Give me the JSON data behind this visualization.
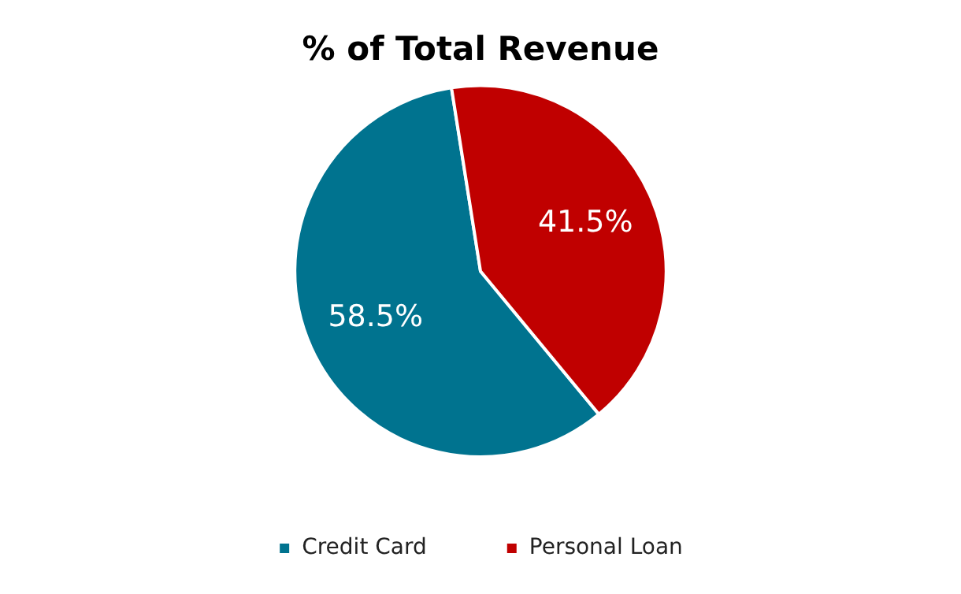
{
  "chart_data": {
    "type": "pie",
    "title": "% of Total Revenue",
    "categories": [
      "Credit Card",
      "Personal Loan"
    ],
    "values": [
      58.5,
      41.5
    ],
    "colors": [
      "#00738f",
      "#c00000"
    ],
    "value_labels": [
      "58.5%",
      "41.5%"
    ],
    "legend": "bottom"
  }
}
